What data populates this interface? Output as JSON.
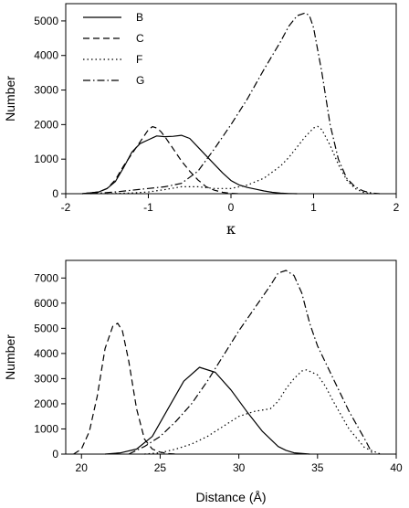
{
  "chart_data": [
    {
      "type": "line",
      "xlabel": "κ",
      "ylabel": "Number",
      "xlim": [
        -2,
        2
      ],
      "ylim": [
        0,
        5500
      ],
      "xticks": [
        -2,
        -1,
        0,
        1,
        2
      ],
      "yticks": [
        0,
        1000,
        2000,
        3000,
        4000,
        5000
      ],
      "legend_position": "top-left",
      "series": [
        {
          "name": "B",
          "dash": "solid",
          "x": [
            -1.8,
            -1.6,
            -1.5,
            -1.4,
            -1.3,
            -1.2,
            -1.1,
            -1.0,
            -0.9,
            -0.8,
            -0.7,
            -0.6,
            -0.5,
            -0.4,
            -0.3,
            -0.2,
            -0.1,
            0.0,
            0.1,
            0.2,
            0.3,
            0.4,
            0.5,
            0.6,
            0.7,
            0.8
          ],
          "y": [
            0,
            50,
            150,
            350,
            750,
            1200,
            1450,
            1560,
            1670,
            1650,
            1660,
            1690,
            1600,
            1350,
            1100,
            850,
            600,
            380,
            250,
            180,
            130,
            80,
            40,
            15,
            5,
            0
          ]
        },
        {
          "name": "C",
          "dash": "dashed",
          "x": [
            -1.8,
            -1.6,
            -1.5,
            -1.4,
            -1.3,
            -1.2,
            -1.1,
            -1.0,
            -0.95,
            -0.9,
            -0.85,
            -0.8,
            -0.7,
            -0.6,
            -0.5,
            -0.4,
            -0.3,
            -0.2,
            -0.1,
            0.0,
            0.1
          ],
          "y": [
            0,
            50,
            150,
            400,
            800,
            1150,
            1500,
            1850,
            1940,
            1900,
            1800,
            1650,
            1300,
            950,
            650,
            400,
            200,
            100,
            40,
            10,
            0
          ]
        },
        {
          "name": "F",
          "dash": "dotted",
          "x": [
            -1.5,
            -1.2,
            -1.0,
            -0.8,
            -0.6,
            -0.4,
            -0.2,
            0.0,
            0.2,
            0.4,
            0.6,
            0.7,
            0.8,
            0.9,
            1.0,
            1.05,
            1.1,
            1.2,
            1.3,
            1.4,
            1.5,
            1.6,
            1.7
          ],
          "y": [
            0,
            20,
            50,
            120,
            200,
            200,
            150,
            150,
            250,
            450,
            800,
            1050,
            1350,
            1650,
            1900,
            1950,
            1850,
            1400,
            850,
            400,
            150,
            40,
            0
          ]
        },
        {
          "name": "G",
          "dash": "dash-dot",
          "x": [
            -1.7,
            -1.4,
            -1.2,
            -1.0,
            -0.8,
            -0.6,
            -0.4,
            -0.2,
            0.0,
            0.2,
            0.4,
            0.6,
            0.7,
            0.8,
            0.9,
            0.95,
            1.0,
            1.1,
            1.2,
            1.3,
            1.4,
            1.5,
            1.6,
            1.7,
            1.8
          ],
          "y": [
            0,
            50,
            100,
            150,
            200,
            300,
            650,
            1300,
            2000,
            2750,
            3600,
            4400,
            4850,
            5150,
            5230,
            5150,
            4800,
            3500,
            2000,
            1000,
            450,
            200,
            80,
            20,
            0
          ]
        }
      ]
    },
    {
      "type": "line",
      "xlabel": "Distance (Å)",
      "ylabel": "Number",
      "xlim": [
        19,
        40
      ],
      "ylim": [
        0,
        7700
      ],
      "xticks": [
        20,
        25,
        30,
        35,
        40
      ],
      "yticks": [
        0,
        1000,
        2000,
        3000,
        4000,
        5000,
        6000,
        7000
      ],
      "series": [
        {
          "name": "B",
          "dash": "solid",
          "x": [
            21.5,
            22.5,
            23.5,
            24.5,
            25.5,
            26.5,
            27.5,
            28.5,
            29.5,
            30.5,
            31.5,
            32.5,
            33.0,
            33.5,
            34.5
          ],
          "y": [
            0,
            50,
            200,
            700,
            1800,
            2900,
            3450,
            3250,
            2550,
            1700,
            900,
            300,
            150,
            50,
            0
          ]
        },
        {
          "name": "C",
          "dash": "dashed",
          "x": [
            19.5,
            20.0,
            20.5,
            21.0,
            21.5,
            22.0,
            22.3,
            22.6,
            23.0,
            23.5,
            24.0,
            24.5,
            25.0,
            25.5,
            26.0
          ],
          "y": [
            0,
            200,
            900,
            2300,
            4200,
            5100,
            5200,
            4900,
            3700,
            1800,
            600,
            200,
            80,
            20,
            0
          ]
        },
        {
          "name": "F",
          "dash": "dotted",
          "x": [
            24.0,
            25.0,
            26.0,
            27.0,
            28.0,
            29.0,
            30.0,
            31.0,
            32.0,
            32.5,
            33.0,
            33.5,
            34.0,
            34.3,
            35.0,
            35.5,
            36.0,
            37.0,
            38.0,
            39.0
          ],
          "y": [
            0,
            50,
            200,
            400,
            700,
            1100,
            1500,
            1700,
            1800,
            2100,
            2600,
            3000,
            3300,
            3350,
            3150,
            2700,
            2100,
            1000,
            250,
            0
          ]
        },
        {
          "name": "G",
          "dash": "dash-dot",
          "x": [
            23.0,
            24.0,
            25.0,
            26.0,
            27.0,
            28.0,
            29.0,
            30.0,
            31.0,
            32.0,
            32.5,
            33.0,
            33.5,
            34.0,
            34.5,
            35.0,
            36.0,
            37.0,
            38.0,
            38.5
          ],
          "y": [
            0,
            300,
            700,
            1300,
            2000,
            2900,
            3900,
            4900,
            5800,
            6700,
            7200,
            7300,
            7100,
            6400,
            5200,
            4300,
            3000,
            1700,
            600,
            0
          ]
        }
      ]
    }
  ]
}
